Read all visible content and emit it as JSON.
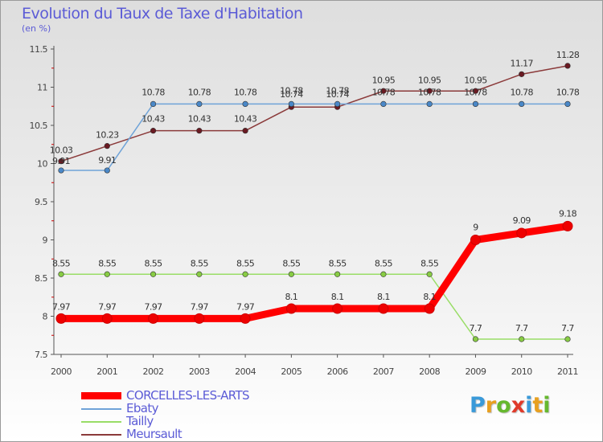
{
  "title": "Evolution du Taux de Taxe d'Habitation",
  "subtitle": "(en %)",
  "logo": {
    "letters": [
      "P",
      "r",
      "o",
      "x",
      "i",
      "t",
      "i"
    ],
    "colors": [
      "#3a9ad9",
      "#e8a020",
      "#66b82e",
      "#e03a2a",
      "#3a9ad9",
      "#e8a020",
      "#66b82e"
    ]
  },
  "chart_data": {
    "type": "line",
    "title": "Evolution du Taux de Taxe d'Habitation",
    "ylabel": "(en %)",
    "xlabel": "",
    "x": [
      "2000",
      "2001",
      "2002",
      "2003",
      "2004",
      "2005",
      "2006",
      "2007",
      "2008",
      "2009",
      "2010",
      "2011"
    ],
    "ylim": [
      7.5,
      11.5
    ],
    "yticks": [
      "7.5",
      "8",
      "8.5",
      "9",
      "9.5",
      "10",
      "10.5",
      "11",
      "11.5"
    ],
    "grid": false,
    "legend_position": "bottom-left",
    "series": [
      {
        "name": "CORCELLES-LES-ARTS",
        "color": "#ff0000",
        "marker_color": "#ee0000",
        "thick": true,
        "values": [
          7.97,
          7.97,
          7.97,
          7.97,
          7.97,
          8.1,
          8.1,
          8.1,
          8.1,
          9,
          9.09,
          9.18
        ],
        "labels": [
          "7.97",
          "7.97",
          "7.97",
          "7.97",
          "7.97",
          "8.1",
          "8.1",
          "8.1",
          "8.1",
          "9",
          "9.09",
          "9.18"
        ]
      },
      {
        "name": "Ebaty",
        "color": "#6fa3d8",
        "marker_color": "#4a88c8",
        "thick": false,
        "values": [
          9.91,
          9.91,
          10.78,
          10.78,
          10.78,
          10.78,
          10.78,
          10.78,
          10.78,
          10.78,
          10.78,
          10.78
        ],
        "labels": [
          "9.91",
          "9.91",
          "10.78",
          "10.78",
          "10.78",
          "10.78",
          "10.78",
          "10.78",
          "10.78",
          "10.78",
          "10.78",
          "10.78"
        ]
      },
      {
        "name": "Tailly",
        "color": "#99dd66",
        "marker_color": "#88cc44",
        "thick": false,
        "values": [
          8.55,
          8.55,
          8.55,
          8.55,
          8.55,
          8.55,
          8.55,
          8.55,
          8.55,
          7.7,
          7.7,
          7.7
        ],
        "labels": [
          "8.55",
          "8.55",
          "8.55",
          "8.55",
          "8.55",
          "8.55",
          "8.55",
          "8.55",
          "8.55",
          "7.7",
          "7.7",
          "7.7"
        ]
      },
      {
        "name": "Meursault",
        "color": "#8b3a3a",
        "marker_color": "#6a1a22",
        "thick": false,
        "values": [
          10.03,
          10.23,
          10.43,
          10.43,
          10.43,
          10.74,
          10.74,
          10.95,
          10.95,
          10.95,
          11.17,
          11.28
        ],
        "labels": [
          "10.03",
          "10.23",
          "10.43",
          "10.43",
          "10.43",
          "10.74",
          "10.74",
          "10.95",
          "10.95",
          "10.95",
          "11.17",
          "11.28"
        ]
      }
    ]
  }
}
